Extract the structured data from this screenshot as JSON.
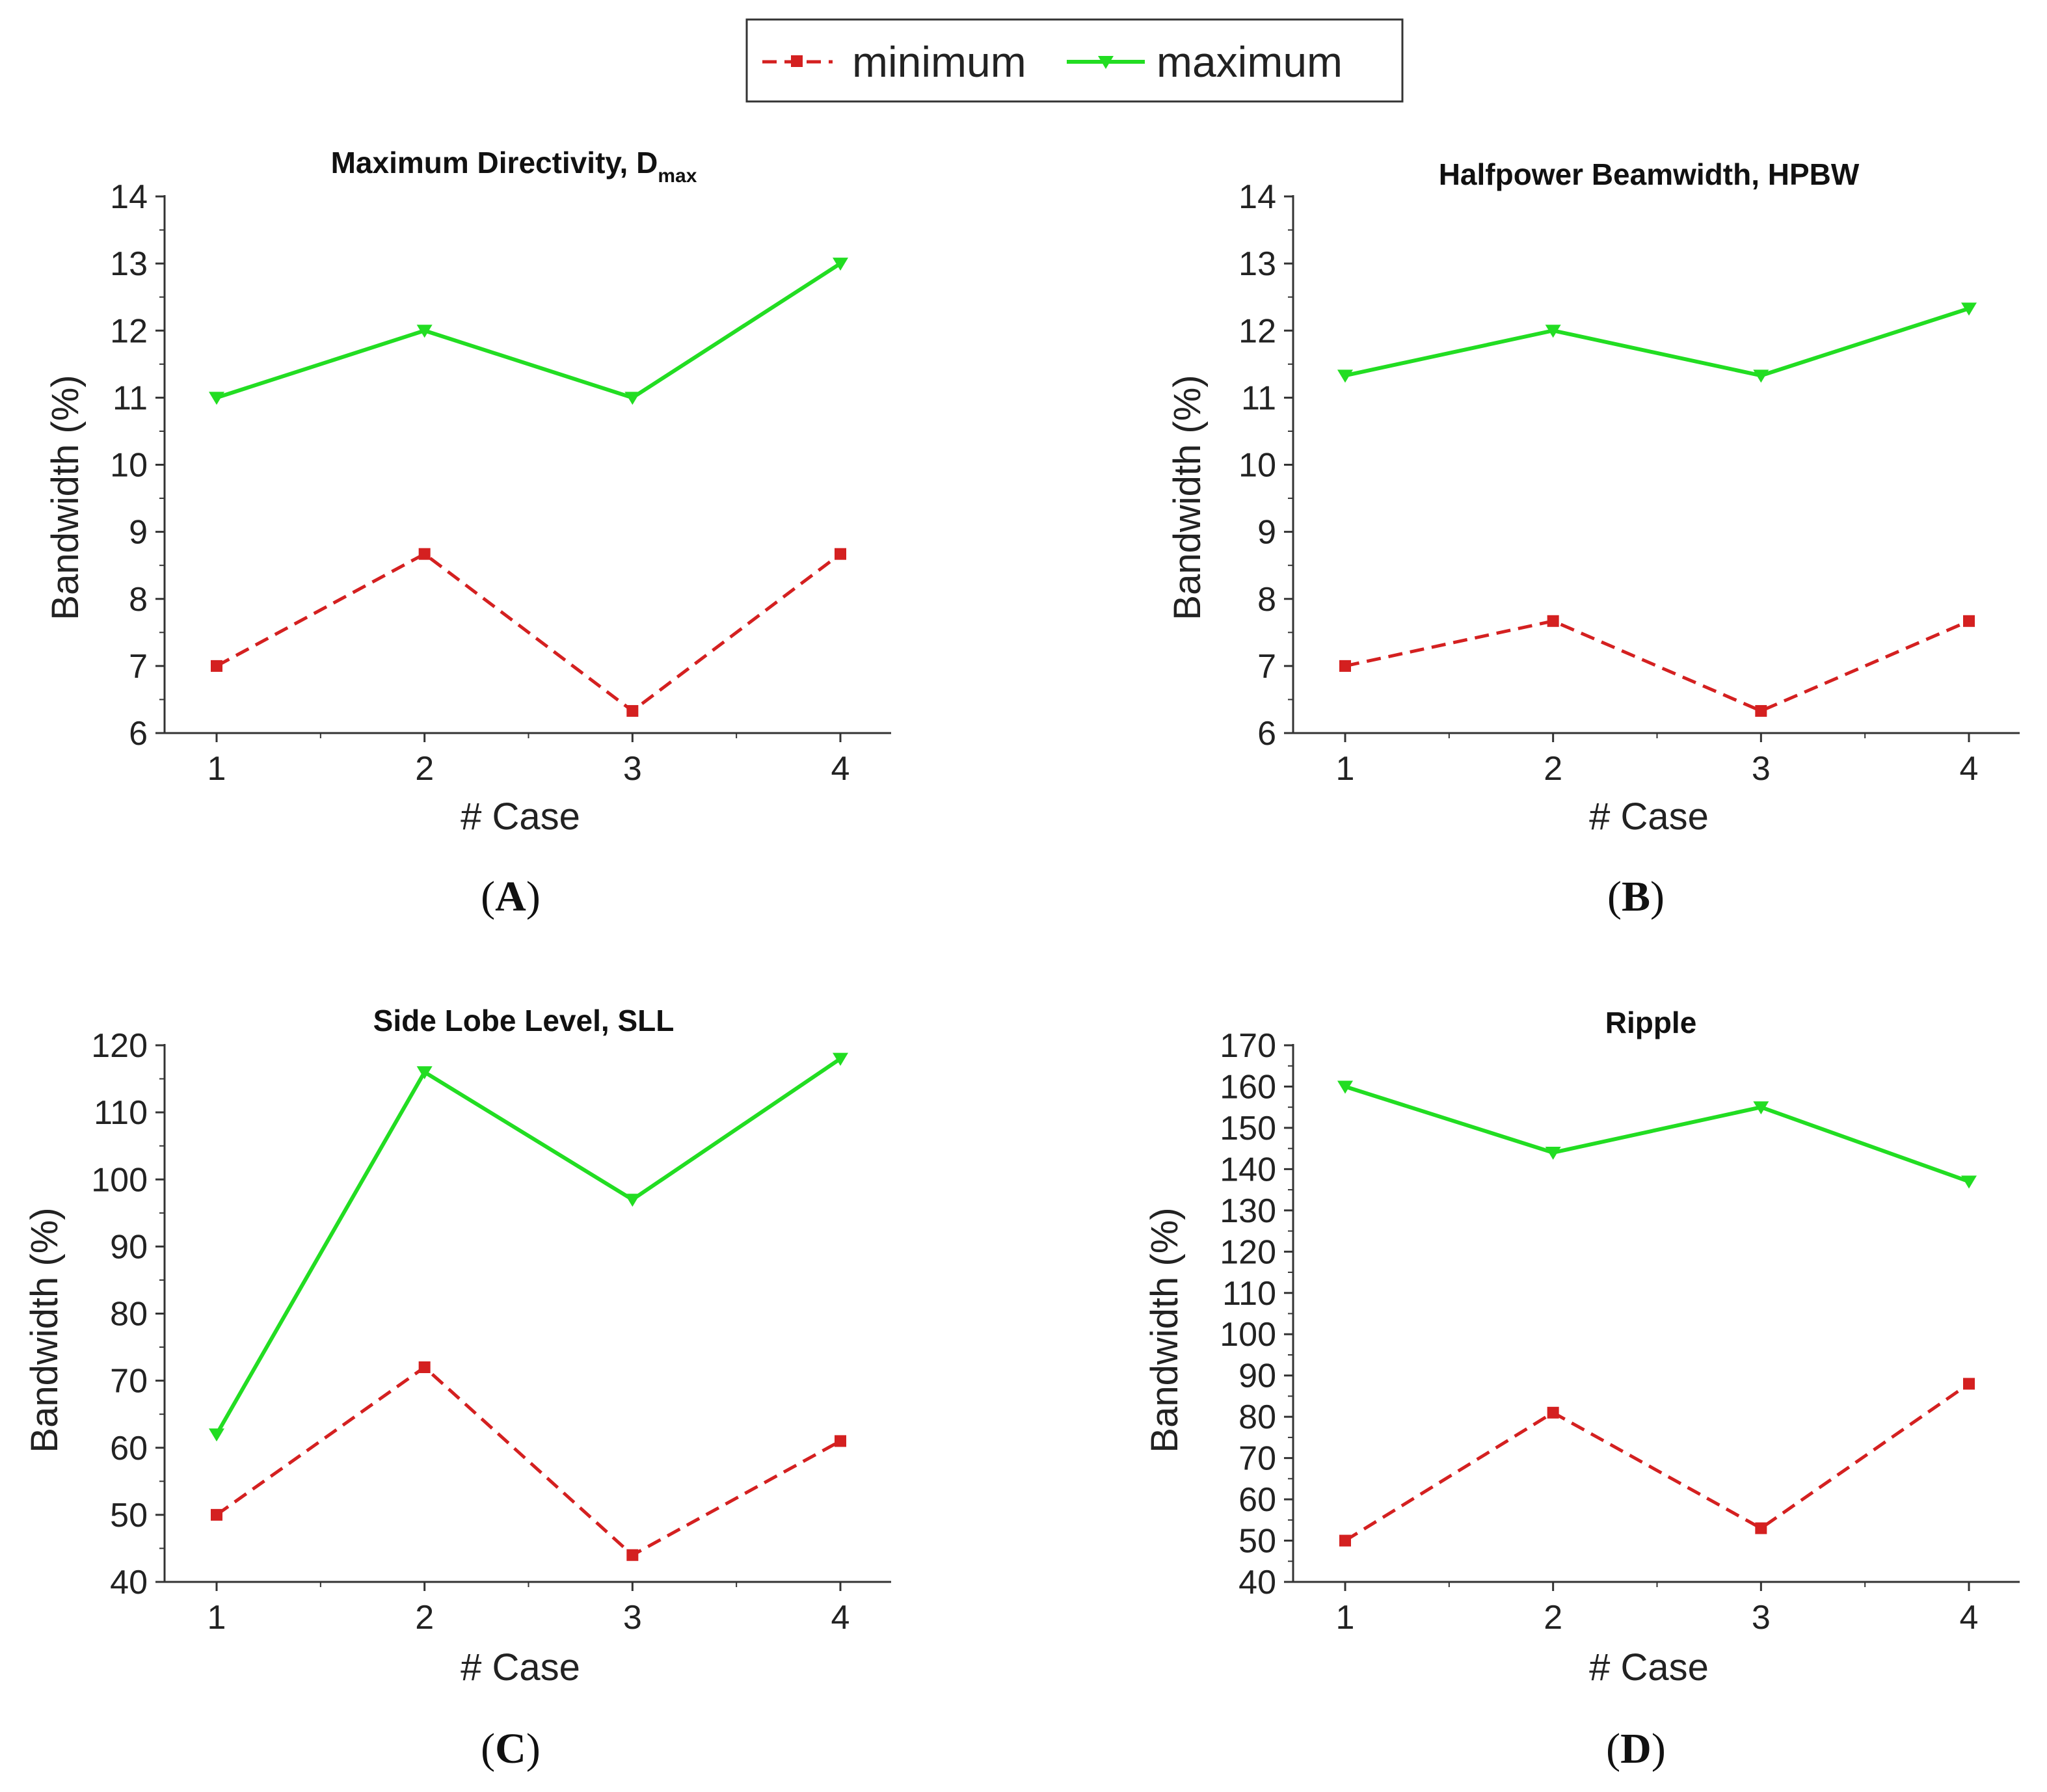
{
  "legend": {
    "min_label": "minimum",
    "max_label": "maximum",
    "min_color": "#d42020",
    "max_color": "#22dd22"
  },
  "chart_data": [
    {
      "type": "line",
      "panel": "A",
      "title": "Maximum Directivity, D",
      "title_sub": "max",
      "xlabel": "# Case",
      "ylabel": "Bandwidth (%)",
      "categories": [
        "1",
        "2",
        "3",
        "4"
      ],
      "ylim": [
        6,
        14
      ],
      "yticks": [
        6,
        7,
        8,
        9,
        10,
        11,
        12,
        13,
        14
      ],
      "series": [
        {
          "name": "minimum",
          "values": [
            7.0,
            8.67,
            6.33,
            8.67
          ]
        },
        {
          "name": "maximum",
          "values": [
            11.0,
            12.0,
            11.0,
            13.0
          ]
        }
      ]
    },
    {
      "type": "line",
      "panel": "B",
      "title": "Halfpower Beamwidth, HPBW",
      "title_sub": "",
      "xlabel": "# Case",
      "ylabel": "Bandwidth (%)",
      "categories": [
        "1",
        "2",
        "3",
        "4"
      ],
      "ylim": [
        6,
        14
      ],
      "yticks": [
        6,
        7,
        8,
        9,
        10,
        11,
        12,
        13,
        14
      ],
      "series": [
        {
          "name": "minimum",
          "values": [
            7.0,
            7.67,
            6.33,
            7.67
          ]
        },
        {
          "name": "maximum",
          "values": [
            11.33,
            12.0,
            11.33,
            12.33
          ]
        }
      ]
    },
    {
      "type": "line",
      "panel": "C",
      "title": "Side Lobe Level, SLL",
      "title_sub": "",
      "xlabel": "# Case",
      "ylabel": "Bandwidth (%)",
      "categories": [
        "1",
        "2",
        "3",
        "4"
      ],
      "ylim": [
        40,
        120
      ],
      "yticks": [
        40,
        50,
        60,
        70,
        80,
        90,
        100,
        110,
        120
      ],
      "series": [
        {
          "name": "minimum",
          "values": [
            50,
            72,
            44,
            61
          ]
        },
        {
          "name": "maximum",
          "values": [
            62,
            116,
            97,
            118
          ]
        }
      ]
    },
    {
      "type": "line",
      "panel": "D",
      "title": "Ripple",
      "title_sub": "",
      "xlabel": "# Case",
      "ylabel": "Bandwidth (%)",
      "categories": [
        "1",
        "2",
        "3",
        "4"
      ],
      "ylim": [
        40,
        170
      ],
      "yticks": [
        40,
        50,
        60,
        70,
        80,
        90,
        100,
        110,
        120,
        130,
        140,
        150,
        160,
        170
      ],
      "series": [
        {
          "name": "minimum",
          "values": [
            50,
            81,
            53,
            88
          ]
        },
        {
          "name": "maximum",
          "values": [
            160,
            144,
            155,
            137
          ]
        }
      ]
    }
  ]
}
